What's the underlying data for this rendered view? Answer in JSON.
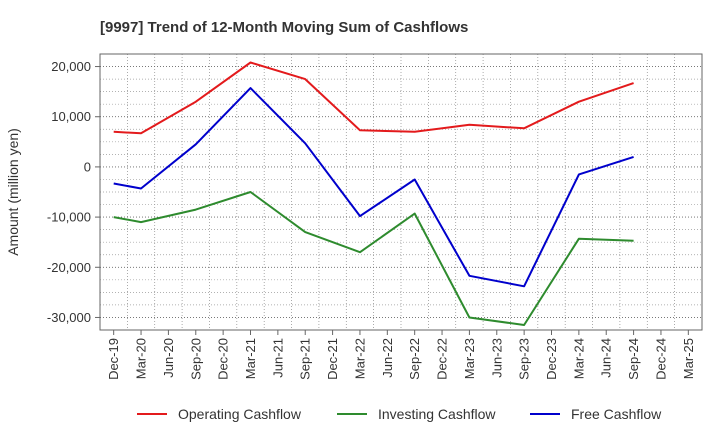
{
  "chart_data": {
    "type": "line",
    "title": "[9997]  Trend of 12-Month Moving Sum of Cashflows",
    "xlabel": "",
    "ylabel": "Amount (million yen)",
    "categories": [
      "Dec-19",
      "Mar-20",
      "Jun-20",
      "Sep-20",
      "Dec-20",
      "Mar-21",
      "Jun-21",
      "Sep-21",
      "Dec-21",
      "Mar-22",
      "Jun-22",
      "Sep-22",
      "Dec-22",
      "Mar-23",
      "Jun-23",
      "Sep-23",
      "Dec-23",
      "Mar-24",
      "Jun-24",
      "Sep-24",
      "Dec-24",
      "Mar-25"
    ],
    "ylim": [
      -32500,
      22500
    ],
    "yticks": [
      -30000,
      -20000,
      -10000,
      0,
      10000,
      20000
    ],
    "ytick_labels": [
      "-30,000",
      "-20,000",
      "-10,000",
      "0",
      "10,000",
      "20,000"
    ],
    "grid": true,
    "legend_position": "bottom",
    "series": [
      {
        "name": "Operating Cashflow",
        "color": "#e31a1c",
        "points": [
          [
            0,
            7000
          ],
          [
            1,
            6700
          ],
          [
            3,
            13000
          ],
          [
            5,
            20800
          ],
          [
            7,
            17500
          ],
          [
            9,
            7300
          ],
          [
            11,
            7000
          ],
          [
            13,
            8400
          ],
          [
            15,
            7700
          ],
          [
            17,
            13000
          ],
          [
            19,
            16700
          ]
        ]
      },
      {
        "name": "Investing Cashflow",
        "color": "#2e8b2e",
        "points": [
          [
            0,
            -10000
          ],
          [
            1,
            -11000
          ],
          [
            3,
            -8500
          ],
          [
            5,
            -5000
          ],
          [
            7,
            -13000
          ],
          [
            9,
            -17000
          ],
          [
            11,
            -9300
          ],
          [
            13,
            -30000
          ],
          [
            15,
            -31500
          ],
          [
            17,
            -14300
          ],
          [
            19,
            -14700
          ]
        ]
      },
      {
        "name": "Free Cashflow",
        "color": "#0000cc",
        "points": [
          [
            0,
            -3300
          ],
          [
            1,
            -4300
          ],
          [
            3,
            4500
          ],
          [
            5,
            15700
          ],
          [
            7,
            4700
          ],
          [
            9,
            -9800
          ],
          [
            11,
            -2500
          ],
          [
            13,
            -21700
          ],
          [
            15,
            -23800
          ],
          [
            17,
            -1500
          ],
          [
            19,
            2000
          ]
        ]
      }
    ]
  }
}
